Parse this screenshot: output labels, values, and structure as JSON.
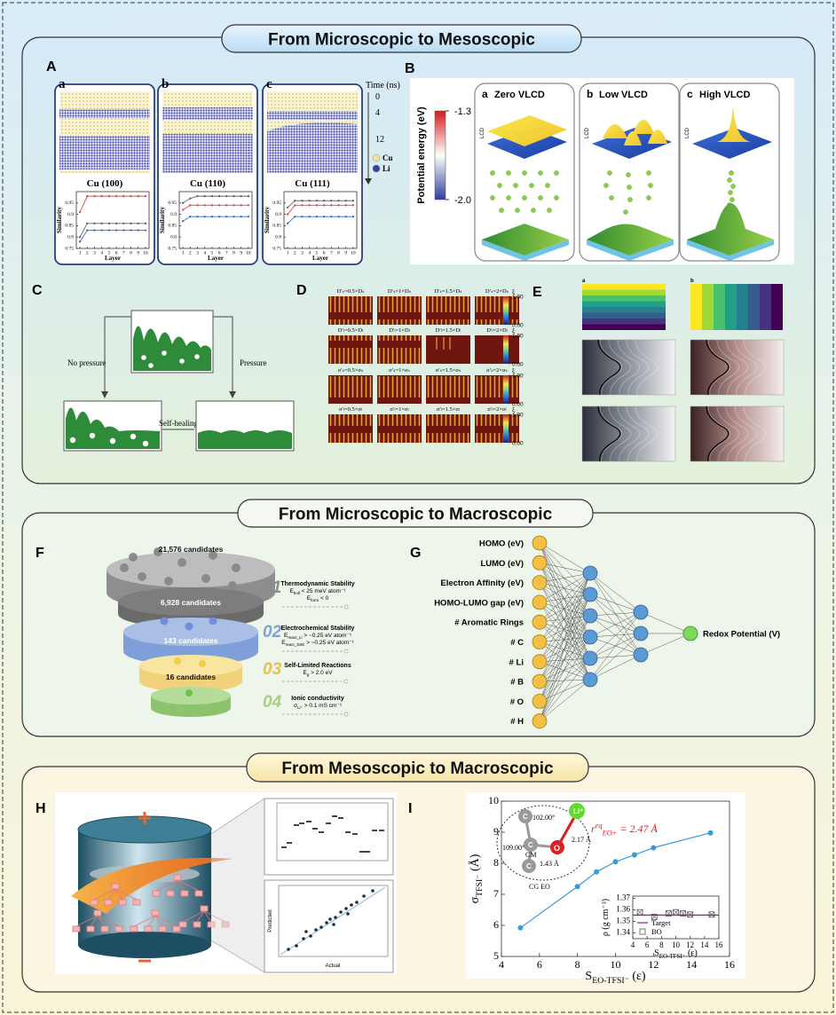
{
  "sections": [
    {
      "title": "From Microscopic to Mesoscopic"
    },
    {
      "title": "From Microscopic to Macroscopic"
    },
    {
      "title": "From Mesoscopic to Macroscopic"
    }
  ],
  "panel_A": {
    "letter": "A",
    "time_label": "Time (ns)",
    "times": [
      0,
      4,
      12
    ],
    "legend": [
      {
        "name": "Cu",
        "color": "#efe3a0"
      },
      {
        "name": "Li",
        "color": "#3a3fa6"
      }
    ],
    "subpanels": [
      {
        "letter": "a",
        "label": "Cu (100)",
        "chart": {
          "type": "line",
          "xlabel": "Layer",
          "ylabel": "Similarity",
          "x": [
            1,
            2,
            3,
            4,
            5,
            6,
            7,
            8,
            9,
            10
          ],
          "xlim": [
            0.5,
            10.5
          ],
          "ylim": [
            0.75,
            1
          ],
          "xticks": [
            1,
            2,
            3,
            4,
            5,
            6,
            7,
            8,
            9,
            10
          ],
          "yticks": [
            0.75,
            0.8,
            0.85,
            0.9,
            0.95
          ],
          "series": [
            {
              "color": "#e0474c",
              "values": [
                0.91,
                0.98,
                0.98,
                0.98,
                0.98,
                0.98,
                0.98,
                0.98,
                0.98,
                0.98
              ]
            },
            {
              "color": "#666666",
              "values": [
                0.8,
                0.86,
                0.86,
                0.86,
                0.86,
                0.86,
                0.86,
                0.86,
                0.86,
                0.86
              ]
            },
            {
              "color": "#3a6fc4",
              "values": [
                0.78,
                0.83,
                0.83,
                0.83,
                0.83,
                0.83,
                0.83,
                0.83,
                0.83,
                0.83
              ]
            }
          ]
        }
      },
      {
        "letter": "b",
        "label": "Cu (110)",
        "chart": {
          "type": "line",
          "xlabel": "Layer",
          "ylabel": "Similarity",
          "x": [
            1,
            2,
            3,
            4,
            5,
            6,
            7,
            8,
            9,
            10
          ],
          "xlim": [
            0.5,
            10.5
          ],
          "ylim": [
            0.75,
            1
          ],
          "xticks": [
            1,
            2,
            3,
            4,
            5,
            6,
            7,
            8,
            9,
            10
          ],
          "yticks": [
            0.75,
            0.8,
            0.85,
            0.9,
            0.95
          ],
          "series": [
            {
              "color": "#666666",
              "values": [
                0.95,
                0.97,
                0.98,
                0.98,
                0.98,
                0.98,
                0.98,
                0.98,
                0.98,
                0.98
              ]
            },
            {
              "color": "#e0474c",
              "values": [
                0.92,
                0.94,
                0.94,
                0.94,
                0.94,
                0.94,
                0.94,
                0.94,
                0.94,
                0.94
              ]
            },
            {
              "color": "#3a6fc4",
              "values": [
                0.87,
                0.89,
                0.89,
                0.89,
                0.89,
                0.89,
                0.89,
                0.89,
                0.89,
                0.89
              ]
            }
          ]
        }
      },
      {
        "letter": "c",
        "label": "Cu (111)",
        "chart": {
          "type": "line",
          "xlabel": "Layer",
          "ylabel": "Similarity",
          "x": [
            1,
            2,
            3,
            4,
            5,
            6,
            7,
            8,
            9,
            10
          ],
          "xlim": [
            0.5,
            10.5
          ],
          "ylim": [
            0.75,
            1
          ],
          "xticks": [
            1,
            2,
            3,
            4,
            5,
            6,
            7,
            8,
            9,
            10
          ],
          "yticks": [
            0.75,
            0.8,
            0.85,
            0.9,
            0.95
          ],
          "series": [
            {
              "color": "#666666",
              "values": [
                0.93,
                0.96,
                0.96,
                0.96,
                0.96,
                0.96,
                0.96,
                0.96,
                0.96,
                0.96
              ]
            },
            {
              "color": "#e0474c",
              "values": [
                0.9,
                0.94,
                0.94,
                0.94,
                0.94,
                0.94,
                0.94,
                0.94,
                0.94,
                0.94
              ]
            },
            {
              "color": "#3a6fc4",
              "values": [
                0.86,
                0.89,
                0.89,
                0.89,
                0.89,
                0.89,
                0.89,
                0.89,
                0.89,
                0.89
              ]
            }
          ]
        }
      }
    ]
  },
  "panel_B": {
    "letter": "B",
    "colorbar": {
      "label": "Potential energy (eV)",
      "lim": [
        -2,
        -1.3
      ],
      "ticks": [
        -1.3,
        {
          "value": -2,
          "label": "-2.0"
        }
      ]
    },
    "axis_label": "LCD",
    "panels": [
      {
        "letter": "a",
        "title": "Zero VLCD"
      },
      {
        "letter": "b",
        "title": "Low VLCD"
      },
      {
        "letter": "c",
        "title": "High VLCD"
      }
    ]
  },
  "panel_C": {
    "letter": "C",
    "left": "No pressure",
    "right": "Pressure",
    "bottom": "Self-healing"
  },
  "panel_D": {
    "letter": "D",
    "rows": [
      [
        "D′ₛ=0.5×Dₛ",
        "D′ₛ=1×Dₛ",
        "D′ₛ=1.5×Dₛ",
        "D′ₛ=2×Dₛ"
      ],
      [
        "D′ₗ=0.5×Dₗ",
        "D′ₗ=1×Dₗ",
        "D′ₗ=1.5×Dₗ",
        "D′ₗ=2×Dₗ"
      ],
      [
        "σ′ₛ=0.5×σₛ",
        "σ′ₛ=1×σₛ",
        "σ′ₛ=1.5×σₛ",
        "σ′ₛ=2×σₛ"
      ],
      [
        "σ′ₗ=0.5×σₗ",
        "σ′ₗ=1×σₗ",
        "σ′ₗ=1.5×σₗ",
        "σ′ₗ=2×σₗ"
      ]
    ],
    "colorbar": {
      "symbol": "ξ",
      "lim": [
        0,
        1
      ],
      "ticks": [
        {
          "value": 1,
          "label": "1.00"
        },
        {
          "value": 0,
          "label": "0.00"
        }
      ]
    }
  },
  "panel_E": {
    "letter": "E",
    "subpanels": [
      "a",
      "b"
    ]
  },
  "panel_F": {
    "letter": "F",
    "candidates": [
      "21,576 candidates",
      "6,928 candidates",
      "143 candidates",
      "16 candidates"
    ],
    "steps": [
      {
        "number": "01",
        "title": "Thermodynamic Stability",
        "criteria": [
          {
            "symbol": "E",
            "sub": "hull",
            "rest": " < 25 meV atom⁻¹"
          },
          {
            "symbol": "E",
            "sub": "form",
            "rest": " < 0"
          }
        ]
      },
      {
        "number": "02",
        "title": "Electrochemical Stability",
        "criteria": [
          {
            "symbol": "E",
            "sub": "react_Li",
            "rest": " > ~0.25 eV atom⁻¹"
          },
          {
            "symbol": "E",
            "sub": "react_SSE",
            "rest": " > ~0.25 eV atom⁻¹"
          }
        ]
      },
      {
        "number": "03",
        "title": "Self-Limited Reactions",
        "criteria": [
          {
            "symbol": "E",
            "sub": "g",
            "rest": " > 2.0 eV"
          }
        ]
      },
      {
        "number": "04",
        "title": "Ionic conductivity",
        "criteria": [
          {
            "symbol": "σ",
            "sub": "Li⁺",
            "rest": " > 0.1 mS cm⁻¹"
          }
        ]
      }
    ]
  },
  "panel_G": {
    "letter": "G",
    "inputs": [
      "HOMO (eV)",
      "LUMO (eV)",
      "Electron Affinity (eV)",
      "HOMO-LUMO gap (eV)",
      "# Aromatic Rings",
      "# C",
      "# Li",
      "# B",
      "# O",
      "# H"
    ],
    "output": "Redox Potential (V)"
  },
  "panel_H": {
    "letter": "H",
    "xlabel": "Actual",
    "ylabel": "Predicted"
  },
  "panel_I": {
    "letter": "I",
    "chart": {
      "type": "line",
      "xlabel": {
        "symbol": "S",
        "sub": "EO-TFSI⁻",
        "unit": " (ε)"
      },
      "ylabel": {
        "symbol": "σ",
        "sub": "TFSI⁻",
        "unit": " (Å)"
      },
      "x": [
        5,
        8,
        9,
        10,
        11,
        12,
        15
      ],
      "series": [
        {
          "color": "#3a9ad9",
          "values": [
            5.92,
            7.25,
            7.72,
            8.05,
            8.27,
            8.5,
            8.98
          ]
        }
      ],
      "xlim": [
        4,
        16
      ],
      "ylim": [
        5,
        10
      ],
      "xticks": [
        4,
        6,
        8,
        10,
        12,
        14,
        16
      ],
      "yticks": [
        5,
        6,
        7,
        8,
        9,
        10
      ]
    },
    "inset": {
      "type": "scatter",
      "xlabel": {
        "symbol": "S",
        "sub": "EO-TFSI⁻",
        "unit": " (ε)"
      },
      "ylabel": "ρ (g cm⁻³)",
      "x": [
        5,
        7,
        9,
        10,
        11,
        12,
        15
      ],
      "series": [
        {
          "name": "BO",
          "color": "#555555",
          "values": [
            1.358,
            1.354,
            1.357,
            1.358,
            1.357,
            1.356,
            1.356
          ]
        }
      ],
      "target": {
        "name": "Target",
        "value": 1.3555,
        "color": "#8b1f8b"
      },
      "xlim": [
        4,
        16
      ],
      "ylim": [
        1.335,
        1.372
      ],
      "xticks": [
        4,
        6,
        8,
        10,
        12,
        14,
        16
      ],
      "yticks": [
        1.34,
        1.35,
        1.36,
        1.37
      ]
    },
    "molecule": {
      "angles": [
        "102.00°",
        "109.00°"
      ],
      "distances": [
        "2.17 Å",
        "1.43 Å"
      ],
      "atoms": {
        "li": "Li⁺",
        "o": "O",
        "c": "C",
        "cm": "CM"
      },
      "group": "CG EO",
      "equilibrium": {
        "symbol": "r",
        "sup": "eq",
        "sub": "EO+",
        "rest": " = 2.47 Å"
      }
    }
  }
}
